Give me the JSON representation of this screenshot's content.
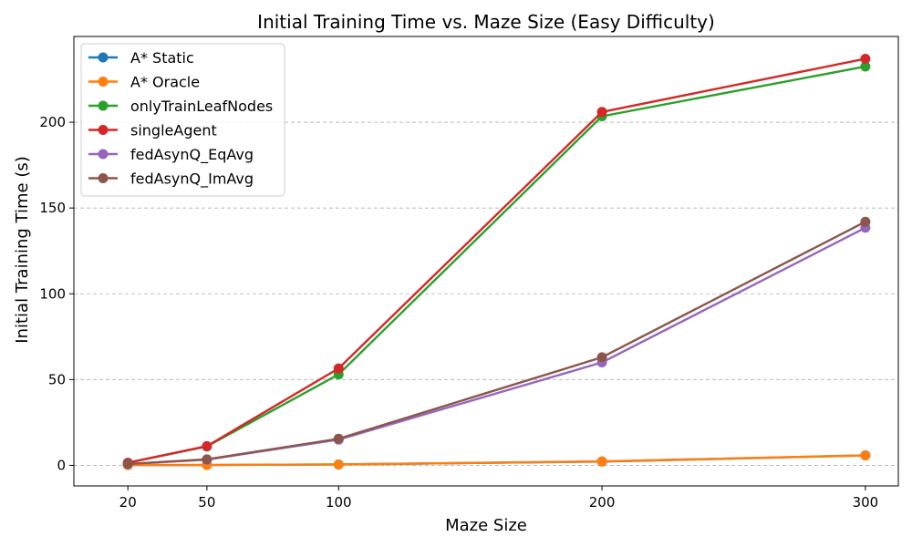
{
  "chart_data": {
    "type": "line",
    "title": "Initial Training Time vs. Maze Size (Easy Difficulty)",
    "xlabel": "Maze Size",
    "ylabel": "Initial Training Time (s)",
    "x": [
      20,
      50,
      100,
      200,
      300
    ],
    "x_ticks": [
      20,
      50,
      100,
      200,
      300
    ],
    "y_ticks": [
      0,
      50,
      100,
      150,
      200
    ],
    "xlim": [
      -0.5,
      312.5
    ],
    "ylim": [
      -12,
      250
    ],
    "grid": "y-dashed",
    "legend_position": "top-left",
    "series": [
      {
        "name": "A* Static",
        "color": "#1f77b4",
        "values": [
          0.2,
          0.2,
          0.5,
          2.2,
          5.8
        ]
      },
      {
        "name": "A* Oracle",
        "color": "#ff7f0e",
        "values": [
          0.2,
          0.2,
          0.5,
          2.3,
          5.8
        ]
      },
      {
        "name": "onlyTrainLeafNodes",
        "color": "#2ca02c",
        "values": [
          1.5,
          11.0,
          53.0,
          203.5,
          232.5
        ]
      },
      {
        "name": "singleAgent",
        "color": "#d62728",
        "values": [
          1.5,
          11.2,
          56.5,
          206.0,
          237.0
        ]
      },
      {
        "name": "fedAsynQ_EqAvg",
        "color": "#9467bd",
        "values": [
          0.8,
          3.3,
          15.0,
          60.0,
          138.5
        ]
      },
      {
        "name": "fedAsynQ_ImAvg",
        "color": "#8c564b",
        "values": [
          0.8,
          3.5,
          15.5,
          63.0,
          142.0
        ]
      }
    ]
  }
}
